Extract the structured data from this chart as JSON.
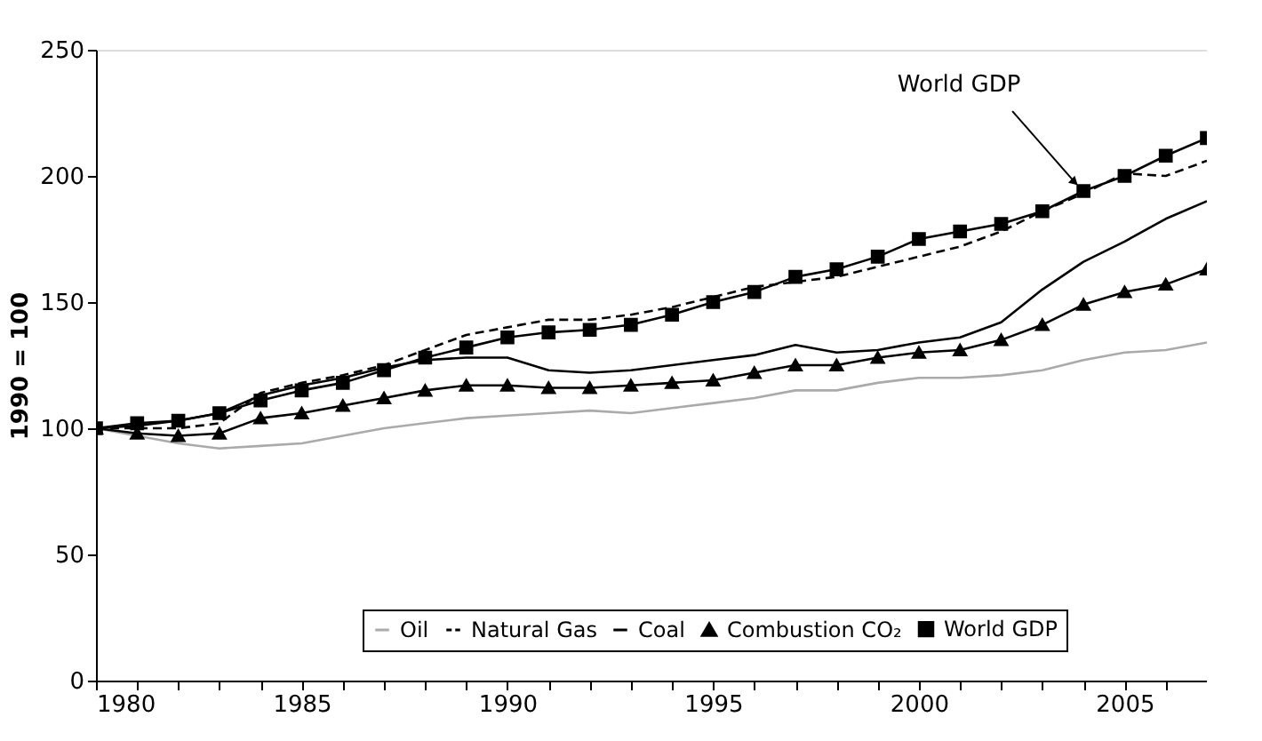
{
  "chart_data": {
    "type": "line",
    "ylabel": "1990 = 100",
    "x": [
      1980,
      1981,
      1982,
      1983,
      1984,
      1985,
      1986,
      1987,
      1988,
      1989,
      1990,
      1991,
      1992,
      1993,
      1994,
      1995,
      1996,
      1997,
      1998,
      1999,
      2000,
      2001,
      2002,
      2003,
      2004,
      2005,
      2006,
      2007
    ],
    "series": [
      {
        "name": "Oil",
        "color": "#aaaaaa",
        "line_style": "solid",
        "marker": "none",
        "values": [
          100,
          97,
          94,
          92,
          93,
          94,
          97,
          100,
          102,
          104,
          105,
          106,
          107,
          106,
          108,
          110,
          112,
          115,
          115,
          118,
          120,
          120,
          121,
          123,
          127,
          130,
          131,
          134
        ]
      },
      {
        "name": "Natural Gas",
        "color": "#000000",
        "line_style": "dashed",
        "marker": "none",
        "values": [
          100,
          100,
          100,
          102,
          114,
          118,
          121,
          125,
          131,
          137,
          140,
          143,
          143,
          145,
          148,
          152,
          156,
          158,
          160,
          164,
          168,
          172,
          178,
          186,
          193,
          201,
          200,
          206
        ]
      },
      {
        "name": "Coal",
        "color": "#000000",
        "line_style": "solid",
        "marker": "none",
        "values": [
          100,
          101,
          103,
          106,
          113,
          117,
          120,
          124,
          127,
          128,
          128,
          123,
          122,
          123,
          125,
          127,
          129,
          133,
          130,
          131,
          134,
          136,
          142,
          155,
          166,
          174,
          183,
          190
        ]
      },
      {
        "name": "Combustion CO₂",
        "color": "#000000",
        "line_style": "solid",
        "marker": "triangle",
        "values": [
          100,
          98,
          97,
          98,
          104,
          106,
          109,
          112,
          115,
          117,
          117,
          116,
          116,
          117,
          118,
          119,
          122,
          125,
          125,
          128,
          130,
          131,
          135,
          141,
          149,
          154,
          157,
          163
        ]
      },
      {
        "name": "World GDP",
        "color": "#000000",
        "line_style": "solid",
        "marker": "square",
        "values": [
          100,
          102,
          103,
          106,
          111,
          115,
          118,
          123,
          128,
          132,
          136,
          138,
          139,
          141,
          145,
          150,
          154,
          160,
          163,
          168,
          175,
          178,
          181,
          186,
          194,
          200,
          208,
          215
        ]
      }
    ],
    "xlim": [
      1980,
      2007
    ],
    "xticks": [
      1980,
      {
        "value": 1981,
        "label": null
      },
      {
        "value": 1982,
        "label": null
      },
      {
        "value": 1983,
        "label": null
      },
      {
        "value": 1984,
        "label": null
      },
      1985,
      {
        "value": 1986,
        "label": null
      },
      {
        "value": 1987,
        "label": null
      },
      {
        "value": 1988,
        "label": null
      },
      {
        "value": 1989,
        "label": null
      },
      1990,
      {
        "value": 1991,
        "label": null
      },
      {
        "value": 1992,
        "label": null
      },
      {
        "value": 1993,
        "label": null
      },
      {
        "value": 1994,
        "label": null
      },
      1995,
      {
        "value": 1996,
        "label": null
      },
      {
        "value": 1997,
        "label": null
      },
      {
        "value": 1998,
        "label": null
      },
      {
        "value": 1999,
        "label": null
      },
      2000,
      {
        "value": 2001,
        "label": null
      },
      {
        "value": 2002,
        "label": null
      },
      {
        "value": 2003,
        "label": null
      },
      {
        "value": 2004,
        "label": null
      },
      2005,
      {
        "value": 2006,
        "label": null
      }
    ],
    "ylim": [
      0,
      250
    ],
    "yticks": [
      0,
      50,
      100,
      150,
      200,
      250
    ],
    "annotations": [
      {
        "text": "World GDP",
        "x": 2004,
        "y": 194
      }
    ],
    "grid": false,
    "legend": "bottom"
  }
}
